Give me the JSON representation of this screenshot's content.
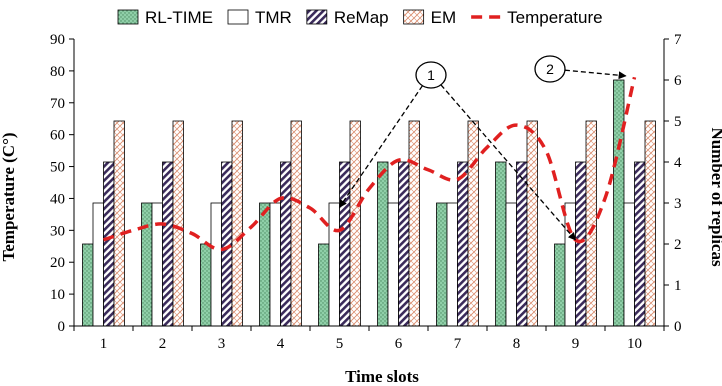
{
  "chart_data": {
    "type": "bar",
    "categories": [
      "1",
      "2",
      "3",
      "4",
      "5",
      "6",
      "7",
      "8",
      "9",
      "10"
    ],
    "xlabel": "Time slots",
    "ylabel": "Temperature (C°)",
    "y2label": "Number of replicas",
    "ylim": [
      0,
      90
    ],
    "y2lim": [
      0,
      7
    ],
    "yticks": [
      0,
      10,
      20,
      30,
      40,
      50,
      60,
      70,
      80,
      90
    ],
    "y2ticks": [
      0,
      1,
      2,
      3,
      4,
      5,
      6,
      7
    ],
    "series": [
      {
        "name": "RL-TIME",
        "axis": "right",
        "kind": "bar",
        "pattern": "dots",
        "color": "#8fcfa8",
        "values": [
          2,
          3,
          2,
          3,
          2,
          4,
          3,
          4,
          2,
          6
        ]
      },
      {
        "name": "TMR",
        "axis": "right",
        "kind": "bar",
        "pattern": "none",
        "color": "#ffffff",
        "values": [
          3,
          3,
          3,
          3,
          3,
          3,
          3,
          3,
          3,
          3
        ]
      },
      {
        "name": "ReMap",
        "axis": "right",
        "kind": "bar",
        "pattern": "diagonal",
        "color": "#3a2a5a",
        "values": [
          4,
          4,
          4,
          4,
          4,
          4,
          4,
          4,
          4,
          4
        ]
      },
      {
        "name": "EM",
        "axis": "right",
        "kind": "bar",
        "pattern": "crosshatch",
        "color": "#d98a6a",
        "values": [
          5,
          5,
          5,
          5,
          5,
          5,
          5,
          5,
          5,
          5
        ]
      },
      {
        "name": "Temperature",
        "axis": "left",
        "kind": "line",
        "style": "dashed",
        "color": "#e02020",
        "x": [
          1,
          1.5,
          2,
          2.5,
          3,
          3.5,
          4,
          4.5,
          5,
          5.5,
          6,
          6.5,
          7,
          7.5,
          8,
          8.5,
          9,
          9.5,
          10
        ],
        "values": [
          27,
          30,
          32,
          29,
          24,
          31,
          40,
          37,
          30,
          43,
          52,
          49,
          46,
          56,
          63,
          55,
          27,
          40,
          78
        ]
      }
    ],
    "legend_position": "top",
    "annotations": [
      {
        "label": "1",
        "targets": [
          [
            5,
            2.9
          ],
          [
            9,
            2.1
          ]
        ]
      },
      {
        "label": "2",
        "targets": [
          [
            9.85,
            6.1
          ]
        ]
      }
    ],
    "grid": false
  }
}
